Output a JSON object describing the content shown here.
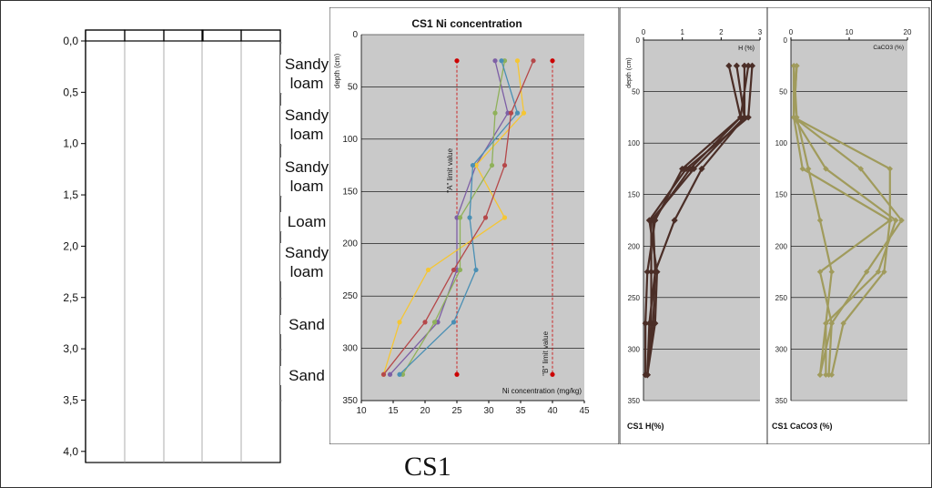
{
  "colors": {
    "purple": "#7d5fa5",
    "yellow": "#f5c634",
    "green": "#8fb15a",
    "teal": "#4a8fb4",
    "red": "#b5484a",
    "brown": "#4b2e27",
    "olive": "#a09b5c",
    "limit": "#cc0000",
    "plot_bg": "#c9c9c9"
  },
  "core": {
    "depth_ticks": [
      "0,0",
      "0,5",
      "1,0",
      "1,5",
      "2,0",
      "2,5",
      "3,0",
      "3,5",
      "4,0"
    ],
    "soil_labels": [
      "Sandy loam",
      "Sandy loam",
      "Sandy loam",
      "Loam",
      "Sandy loam",
      "Sand",
      "Sand"
    ],
    "caption": "CS1"
  },
  "chart_data": [
    {
      "type": "line",
      "title": "CS1 Ni concentration",
      "xlabel": "Ni concentration (mg/kg)",
      "ylabel": "depth (cm)",
      "xlim": [
        10,
        45
      ],
      "ylim": [
        350,
        0
      ],
      "xticks": [
        "10",
        "15",
        "20",
        "25",
        "30",
        "35",
        "40",
        "45"
      ],
      "yticks": [
        "0",
        "50",
        "100",
        "150",
        "200",
        "250",
        "300",
        "350"
      ],
      "grid": true,
      "depths": [
        25,
        75,
        125,
        175,
        225,
        275,
        325
      ],
      "series": [
        {
          "color": "purple",
          "values": [
            31,
            33,
            28,
            25,
            25,
            22,
            14.5
          ]
        },
        {
          "color": "yellow",
          "values": [
            34.5,
            35.5,
            28,
            32.5,
            20.5,
            16,
            13.5
          ]
        },
        {
          "color": "green",
          "values": [
            32.5,
            31,
            30.5,
            25.5,
            25.5,
            21.5,
            16.5
          ]
        },
        {
          "color": "teal",
          "values": [
            32,
            34.5,
            27.5,
            27,
            28,
            24.5,
            16
          ]
        },
        {
          "color": "red",
          "values": [
            37,
            33.5,
            32.5,
            29.5,
            24.5,
            20,
            13.5
          ]
        }
      ],
      "limits": [
        {
          "label": "\"A\" limit value",
          "x": 25
        },
        {
          "label": "\"B\" limit value",
          "x": 40
        }
      ]
    },
    {
      "type": "line",
      "title": "CS1 H(%)",
      "xlabel": "H (%)",
      "ylabel": "depth (cm)",
      "xlim": [
        0,
        3
      ],
      "ylim": [
        350,
        0
      ],
      "xticks": [
        "0",
        "1",
        "2",
        "3"
      ],
      "yticks": [
        "0",
        "50",
        "100",
        "150",
        "200",
        "250",
        "300",
        "350"
      ],
      "grid": true,
      "depths": [
        25,
        75,
        125,
        175,
        225,
        275,
        325
      ],
      "series": [
        {
          "color": "brown",
          "values": [
            2.2,
            2.5,
            1,
            0.3,
            0.1,
            0.05,
            0.05
          ]
        },
        {
          "color": "brown",
          "values": [
            2.4,
            2.6,
            1.5,
            0.8,
            0.3,
            0.15,
            0.1
          ]
        },
        {
          "color": "brown",
          "values": [
            2.6,
            2.6,
            1.3,
            0.2,
            0.2,
            0.2,
            0.1
          ]
        },
        {
          "color": "brown",
          "values": [
            2.7,
            2.5,
            1.2,
            0.25,
            0.3,
            0.25,
            0.1
          ]
        },
        {
          "color": "brown",
          "values": [
            2.8,
            2.7,
            1.1,
            0.15,
            0.35,
            0.3,
            0.1
          ]
        }
      ]
    },
    {
      "type": "line",
      "title": "CS1 CaCO3 (%)",
      "xlabel": "CaCO3 (%)",
      "ylabel": "",
      "xlim": [
        0,
        20
      ],
      "ylim": [
        350,
        0
      ],
      "xticks": [
        "0",
        "10",
        "20"
      ],
      "yticks": [
        "0",
        "50",
        "100",
        "150",
        "200",
        "250",
        "300",
        "350"
      ],
      "grid": true,
      "depths": [
        25,
        75,
        125,
        175,
        225,
        275,
        325
      ],
      "series": [
        {
          "color": "olive",
          "values": [
            0.5,
            1,
            3,
            5,
            7,
            6,
            5
          ]
        },
        {
          "color": "olive",
          "values": [
            0.5,
            0.5,
            2,
            17,
            5,
            7,
            5
          ]
        },
        {
          "color": "olive",
          "values": [
            1,
            0.5,
            6,
            18,
            15,
            6,
            6
          ]
        },
        {
          "color": "olive",
          "values": [
            0.5,
            0.5,
            12,
            19,
            13,
            7,
            6.5
          ]
        },
        {
          "color": "olive",
          "values": [
            1,
            0.5,
            17,
            17,
            16,
            9,
            7
          ]
        }
      ]
    }
  ]
}
